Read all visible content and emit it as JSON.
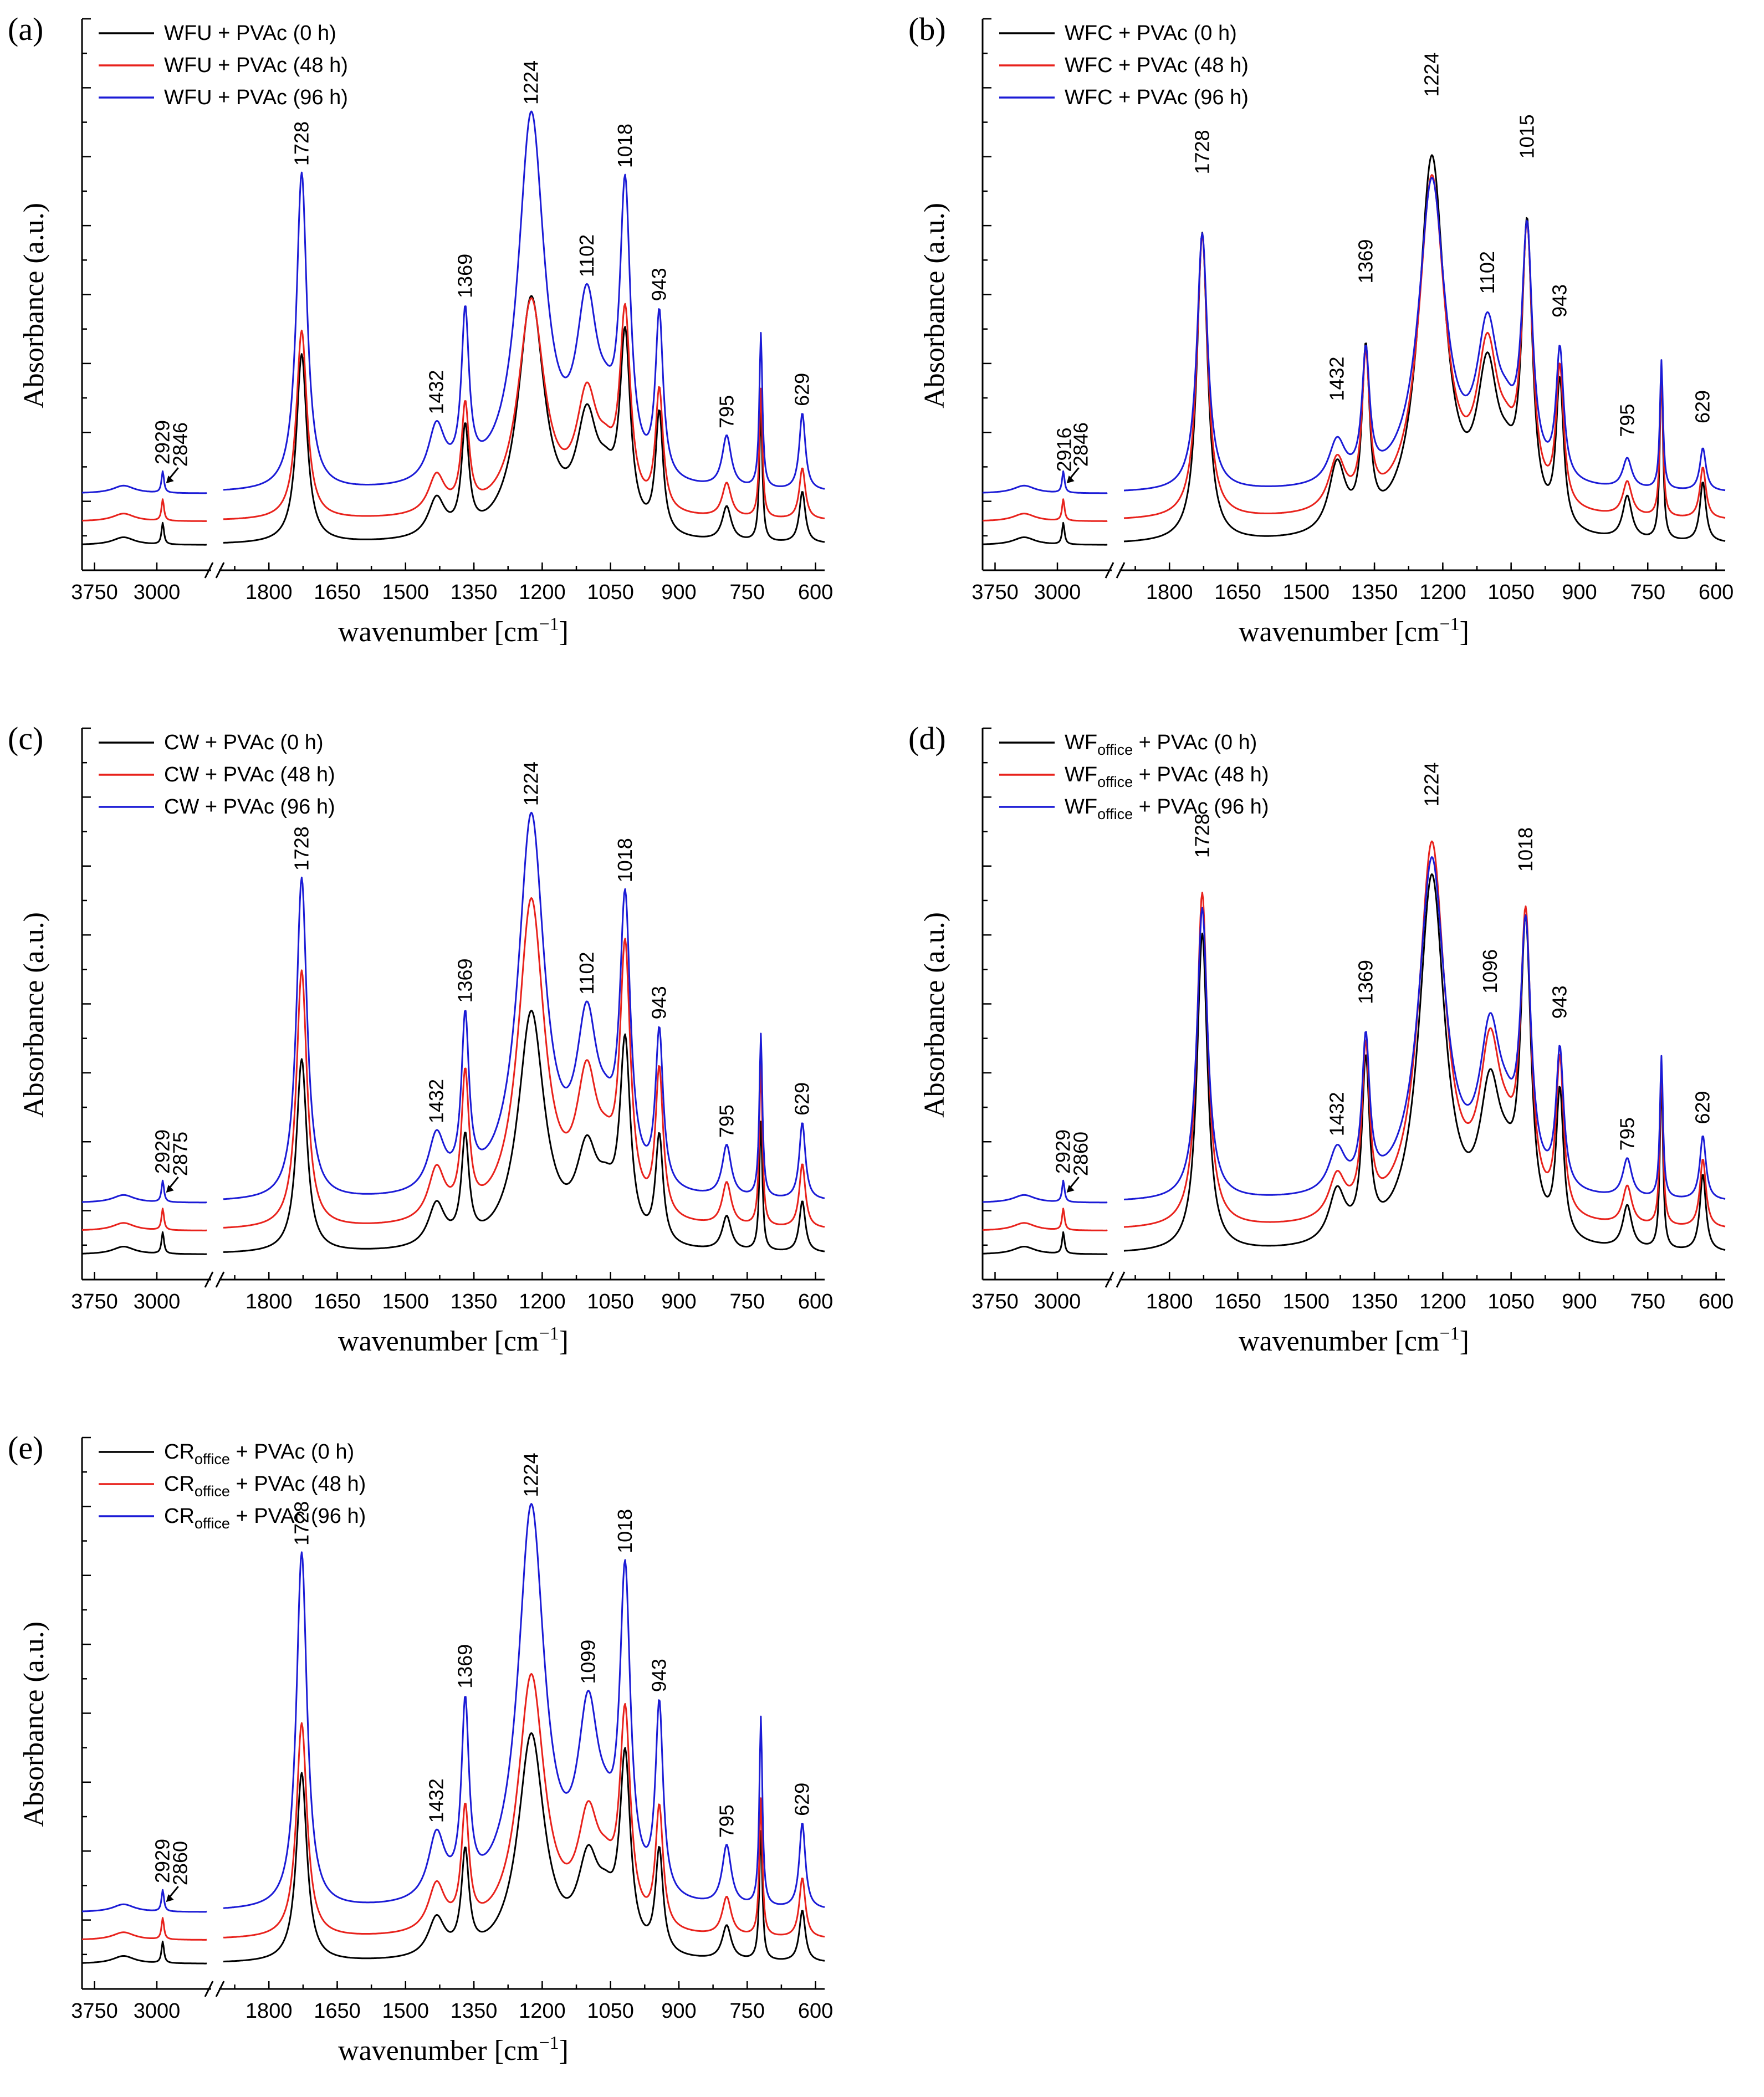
{
  "figure": {
    "colors": {
      "t0": "#000000",
      "t48": "#e8221c",
      "t96": "#1b1bd6"
    },
    "xlabel_main": "wavenumber [cm",
    "xlabel_sup": "−1",
    "xlabel_end": "]",
    "ylabel": "Absorbance (a.u.)",
    "x_ticks_left": [
      "3750",
      "3000"
    ],
    "x_ticks_right": [
      "1800",
      "1650",
      "1500",
      "1350",
      "1200",
      "1050",
      "900",
      "750",
      "600"
    ]
  },
  "chart_data": [
    {
      "id": "a",
      "panel": "(a)",
      "type": "line",
      "legend": [
        {
          "base": "WFU",
          "sub": "",
          "rest": " + PVAc (0 h)",
          "color": "t0"
        },
        {
          "base": "WFU",
          "sub": "",
          "rest": " + PVAc (48 h)",
          "color": "t48"
        },
        {
          "base": "WFU",
          "sub": "",
          "rest": " + PVAc (96 h)",
          "color": "t96"
        }
      ],
      "x_range": [
        3900,
        2400,
        1900,
        580
      ],
      "annotations": [
        "2929",
        "2846",
        "1728",
        "1432",
        "1369",
        "1224",
        "1102",
        "1018",
        "943",
        "795",
        "629"
      ],
      "series": [
        {
          "name": "0 h",
          "peaks": [
            [
              1728,
              0.44
            ],
            [
              1432,
              0.09
            ],
            [
              1369,
              0.24
            ],
            [
              1224,
              0.56
            ],
            [
              1102,
              0.25
            ],
            [
              1018,
              0.44
            ],
            [
              943,
              0.28
            ],
            [
              795,
              0.08
            ],
            [
              720,
              0.3
            ],
            [
              629,
              0.12
            ]
          ]
        },
        {
          "name": "48 h",
          "peaks": [
            [
              1728,
              0.44
            ],
            [
              1432,
              0.09
            ],
            [
              1369,
              0.24
            ],
            [
              1224,
              0.5
            ],
            [
              1102,
              0.25
            ],
            [
              1018,
              0.44
            ],
            [
              943,
              0.28
            ],
            [
              795,
              0.08
            ],
            [
              720,
              0.3
            ],
            [
              629,
              0.12
            ]
          ]
        },
        {
          "name": "96 h",
          "peaks": [
            [
              1728,
              0.74
            ],
            [
              1432,
              0.13
            ],
            [
              1369,
              0.37
            ],
            [
              1224,
              0.86
            ],
            [
              1102,
              0.38
            ],
            [
              1018,
              0.65
            ],
            [
              943,
              0.38
            ],
            [
              795,
              0.12
            ],
            [
              720,
              0.36
            ],
            [
              629,
              0.18
            ]
          ]
        }
      ]
    },
    {
      "id": "b",
      "panel": "(b)",
      "type": "line",
      "legend": [
        {
          "base": "WFC",
          "sub": "",
          "rest": " + PVAc (0 h)",
          "color": "t0"
        },
        {
          "base": "WFC",
          "sub": "",
          "rest": " + PVAc (48 h)",
          "color": "t48"
        },
        {
          "base": "WFC",
          "sub": "",
          "rest": " + PVAc (96 h)",
          "color": "t96"
        }
      ],
      "x_range": [
        3900,
        2400,
        1900,
        580
      ],
      "annotations": [
        "2916",
        "2846",
        "1728",
        "1432",
        "1369",
        "1224",
        "1102",
        "1015",
        "943",
        "795",
        "629"
      ],
      "series": [
        {
          "name": "0 h",
          "peaks": [
            [
              1728,
              0.72
            ],
            [
              1432,
              0.16
            ],
            [
              1369,
              0.4
            ],
            [
              1224,
              0.88
            ],
            [
              1102,
              0.34
            ],
            [
              1015,
              0.68
            ],
            [
              943,
              0.34
            ],
            [
              795,
              0.1
            ],
            [
              720,
              0.4
            ],
            [
              629,
              0.14
            ]
          ]
        },
        {
          "name": "48 h",
          "peaks": [
            [
              1728,
              0.66
            ],
            [
              1432,
              0.12
            ],
            [
              1369,
              0.34
            ],
            [
              1224,
              0.78
            ],
            [
              1102,
              0.34
            ],
            [
              1015,
              0.62
            ],
            [
              943,
              0.32
            ],
            [
              795,
              0.08
            ],
            [
              720,
              0.34
            ],
            [
              629,
              0.12
            ]
          ]
        },
        {
          "name": "96 h",
          "peaks": [
            [
              1728,
              0.6
            ],
            [
              1432,
              0.1
            ],
            [
              1369,
              0.29
            ],
            [
              1224,
              0.71
            ],
            [
              1102,
              0.33
            ],
            [
              1015,
              0.56
            ],
            [
              943,
              0.3
            ],
            [
              795,
              0.07
            ],
            [
              720,
              0.3
            ],
            [
              629,
              0.1
            ]
          ]
        }
      ]
    },
    {
      "id": "c",
      "panel": "(c)",
      "type": "line",
      "legend": [
        {
          "base": "CW",
          "sub": "",
          "rest": " + PVAc (0 h)",
          "color": "t0"
        },
        {
          "base": "CW",
          "sub": "",
          "rest": " + PVAc (48 h)",
          "color": "t48"
        },
        {
          "base": "CW",
          "sub": "",
          "rest": " + PVAc (96 h)",
          "color": "t96"
        }
      ],
      "x_range": [
        3900,
        2400,
        1900,
        580
      ],
      "annotations": [
        "2929",
        "2875",
        "1728",
        "1432",
        "1369",
        "1224",
        "1102",
        "1018",
        "943",
        "795",
        "629"
      ],
      "series": [
        {
          "name": "0 h",
          "peaks": [
            [
              1728,
              0.45
            ],
            [
              1432,
              0.1
            ],
            [
              1369,
              0.24
            ],
            [
              1224,
              0.55
            ],
            [
              1102,
              0.2
            ],
            [
              1018,
              0.45
            ],
            [
              943,
              0.25
            ],
            [
              795,
              0.08
            ],
            [
              720,
              0.3
            ],
            [
              629,
              0.12
            ]
          ]
        },
        {
          "name": "48 h",
          "peaks": [
            [
              1728,
              0.6
            ],
            [
              1432,
              0.12
            ],
            [
              1369,
              0.32
            ],
            [
              1224,
              0.75
            ],
            [
              1102,
              0.3
            ],
            [
              1018,
              0.6
            ],
            [
              943,
              0.34
            ],
            [
              795,
              0.1
            ],
            [
              720,
              0.38
            ],
            [
              629,
              0.15
            ]
          ]
        },
        {
          "name": "96 h",
          "peaks": [
            [
              1728,
              0.75
            ],
            [
              1432,
              0.13
            ],
            [
              1369,
              0.38
            ],
            [
              1224,
              0.88
            ],
            [
              1102,
              0.36
            ],
            [
              1018,
              0.64
            ],
            [
              943,
              0.36
            ],
            [
              795,
              0.12
            ],
            [
              720,
              0.38
            ],
            [
              629,
              0.18
            ]
          ]
        }
      ]
    },
    {
      "id": "d",
      "panel": "(d)",
      "type": "line",
      "legend": [
        {
          "base": "WF",
          "sub": "office",
          "rest": " + PVAc (0 h)",
          "color": "t0"
        },
        {
          "base": "WF",
          "sub": "office",
          "rest": " + PVAc (48 h)",
          "color": "t48"
        },
        {
          "base": "WF",
          "sub": "office",
          "rest": " + PVAc (96 h)",
          "color": "t96"
        }
      ],
      "x_range": [
        3900,
        2400,
        1900,
        580
      ],
      "annotations": [
        "2929",
        "2860",
        "1728",
        "1432",
        "1369",
        "1224",
        "1096",
        "1018",
        "943",
        "795",
        "629"
      ],
      "series": [
        {
          "name": "0 h",
          "peaks": [
            [
              1728,
              0.74
            ],
            [
              1432,
              0.12
            ],
            [
              1369,
              0.4
            ],
            [
              1224,
              0.86
            ],
            [
              1096,
              0.32
            ],
            [
              1018,
              0.7
            ],
            [
              943,
              0.34
            ],
            [
              795,
              0.1
            ],
            [
              720,
              0.4
            ],
            [
              629,
              0.18
            ]
          ]
        },
        {
          "name": "48 h",
          "peaks": [
            [
              1728,
              0.78
            ],
            [
              1432,
              0.1
            ],
            [
              1369,
              0.38
            ],
            [
              1224,
              0.88
            ],
            [
              1096,
              0.36
            ],
            [
              1018,
              0.66
            ],
            [
              943,
              0.36
            ],
            [
              795,
              0.09
            ],
            [
              720,
              0.38
            ],
            [
              629,
              0.16
            ]
          ]
        },
        {
          "name": "96 h",
          "peaks": [
            [
              1728,
              0.68
            ],
            [
              1432,
              0.1
            ],
            [
              1369,
              0.34
            ],
            [
              1224,
              0.78
            ],
            [
              1096,
              0.34
            ],
            [
              1018,
              0.58
            ],
            [
              943,
              0.32
            ],
            [
              795,
              0.09
            ],
            [
              720,
              0.33
            ],
            [
              629,
              0.15
            ]
          ]
        }
      ]
    },
    {
      "id": "e",
      "panel": "(e)",
      "type": "line",
      "legend": [
        {
          "base": "CR",
          "sub": "office",
          "rest": " + PVAc (0 h)",
          "color": "t0"
        },
        {
          "base": "CR",
          "sub": "office",
          "rest": " + PVAc (48 h)",
          "color": "t48"
        },
        {
          "base": "CR",
          "sub": "office",
          "rest": " + PVAc (96 h)",
          "color": "t96"
        }
      ],
      "x_range": [
        3900,
        2400,
        1900,
        580
      ],
      "annotations": [
        "2929",
        "2860",
        "1728",
        "1432",
        "1369",
        "1224",
        "1099",
        "1018",
        "943",
        "795",
        "629"
      ],
      "series": [
        {
          "name": "0 h",
          "peaks": [
            [
              1728,
              0.44
            ],
            [
              1432,
              0.09
            ],
            [
              1369,
              0.23
            ],
            [
              1224,
              0.52
            ],
            [
              1099,
              0.2
            ],
            [
              1018,
              0.44
            ],
            [
              943,
              0.24
            ],
            [
              795,
              0.08
            ],
            [
              720,
              0.3
            ],
            [
              629,
              0.12
            ]
          ]
        },
        {
          "name": "48 h",
          "peaks": [
            [
              1728,
              0.5
            ],
            [
              1432,
              0.11
            ],
            [
              1369,
              0.27
            ],
            [
              1224,
              0.6
            ],
            [
              1099,
              0.24
            ],
            [
              1018,
              0.48
            ],
            [
              943,
              0.28
            ],
            [
              795,
              0.09
            ],
            [
              720,
              0.32
            ],
            [
              629,
              0.14
            ]
          ]
        },
        {
          "name": "96 h",
          "peaks": [
            [
              1728,
              0.83
            ],
            [
              1432,
              0.15
            ],
            [
              1369,
              0.43
            ],
            [
              1224,
              0.92
            ],
            [
              1099,
              0.4
            ],
            [
              1018,
              0.72
            ],
            [
              943,
              0.44
            ],
            [
              795,
              0.14
            ],
            [
              720,
              0.44
            ],
            [
              629,
              0.2
            ]
          ]
        }
      ]
    }
  ]
}
